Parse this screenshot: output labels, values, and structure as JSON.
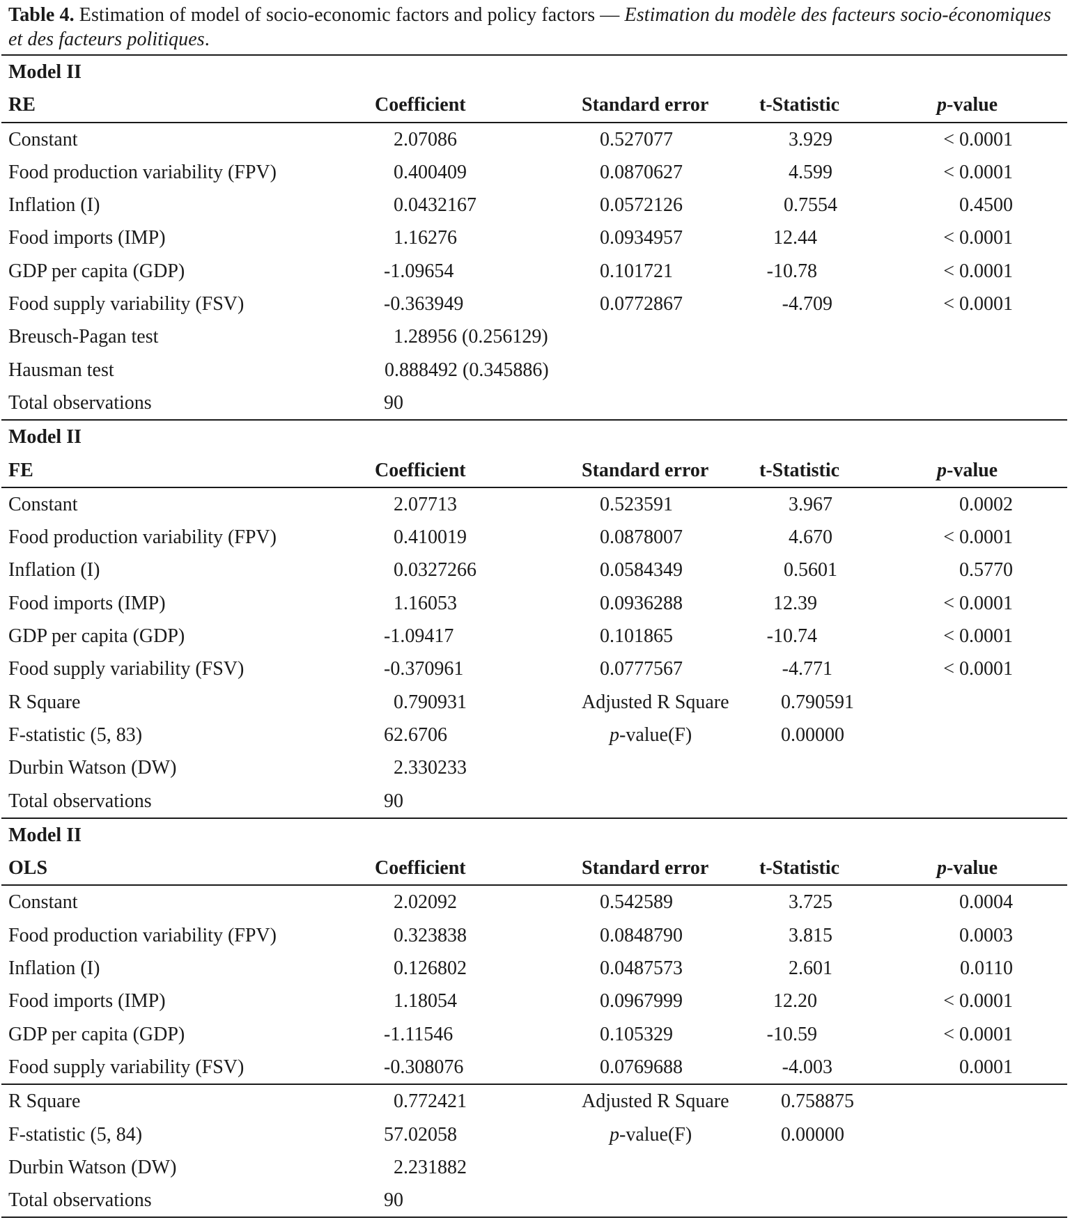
{
  "caption": {
    "label": "Table 4.",
    "english": "Estimation of model of socio-economic factors and policy factors —",
    "french": "Estimation du modèle des facteurs socio-économiques et des facteurs politiques",
    "end": "."
  },
  "header": {
    "coefficient": "Coefficient",
    "std_error": "Standard error",
    "t_stat": "t-Statistic",
    "p_italic": "p",
    "p_rest": "-value"
  },
  "sections": [
    {
      "model": "Model II",
      "name": "RE",
      "rows": [
        [
          "Constant",
          "2.07086",
          "0.527077",
          "3.929",
          "< 0.0001"
        ],
        [
          "Food production variability (FPV)",
          "0.400409",
          "0.0870627",
          "4.599",
          "< 0.0001"
        ],
        [
          "Inflation (I)",
          "0.0432167",
          "0.0572126",
          "0.7554",
          "0.4500"
        ],
        [
          "Food imports (IMP)",
          "1.16276",
          "0.0934957",
          "12.44",
          "< 0.0001"
        ],
        [
          "GDP per capita (GDP)",
          "-1.09654",
          "0.101721",
          "-10.78",
          "< 0.0001"
        ],
        [
          "Food supply variability (FSV)",
          "-0.363949",
          "0.0772867",
          "-4.709",
          "< 0.0001"
        ]
      ],
      "stats": [
        {
          "label": "Breusch-Pagan test",
          "value": "1.28956 (0.256129)"
        },
        {
          "label": "Hausman test",
          "value": "0.888492 (0.345886)"
        },
        {
          "label": "Total observations",
          "value": "90"
        }
      ]
    },
    {
      "model": "Model II",
      "name": "FE",
      "rows": [
        [
          "Constant",
          "2.07713",
          "0.523591",
          "3.967",
          "0.0002"
        ],
        [
          "Food production variability (FPV)",
          "0.410019",
          "0.0878007",
          "4.670",
          "< 0.0001"
        ],
        [
          "Inflation (I)",
          "0.0327266",
          "0.0584349",
          "0.5601",
          "0.5770"
        ],
        [
          "Food imports (IMP)",
          "1.16053",
          "0.0936288",
          "12.39",
          "< 0.0001"
        ],
        [
          "GDP per capita (GDP)",
          "-1.09417",
          "0.101865",
          "-10.74",
          "< 0.0001"
        ],
        [
          "Food supply variability (FSV)",
          "-0.370961",
          "0.0777567",
          "-4.771",
          "< 0.0001"
        ]
      ],
      "fit": {
        "r2_label": "R Square",
        "r2": "0.790931",
        "adj_label": "Adjusted R Square",
        "adj": "0.790591",
        "f_label": "F-statistic (5, 83)",
        "f": "62.6706",
        "pf_italic": "p",
        "pf_rest": "-value(F)",
        "pf": "0.00000",
        "dw_label": "Durbin Watson (DW)",
        "dw": "2.330233",
        "obs_label": "Total observations",
        "obs": "90"
      }
    },
    {
      "model": "Model II",
      "name": "OLS",
      "rows": [
        [
          "Constant",
          "2.02092",
          "0.542589",
          "3.725",
          "0.0004"
        ],
        [
          "Food production variability (FPV)",
          "0.323838",
          "0.0848790",
          "3.815",
          "0.0003"
        ],
        [
          "Inflation (I)",
          "0.126802",
          "0.0487573",
          "2.601",
          "0.0110"
        ],
        [
          "Food imports (IMP)",
          "1.18054",
          "0.0967999",
          "12.20",
          "< 0.0001"
        ],
        [
          "GDP per capita (GDP)",
          "-1.11546",
          "0.105329",
          "-10.59",
          "< 0.0001"
        ],
        [
          "Food supply variability (FSV)",
          "-0.308076",
          "0.0769688",
          "-4.003",
          "0.0001"
        ]
      ],
      "fit": {
        "r2_label": "R Square",
        "r2": "0.772421",
        "adj_label": "Adjusted R Square",
        "adj": "0.758875",
        "f_label": "F-statistic (5, 84)",
        "f": "57.02058",
        "pf_italic": "p",
        "pf_rest": "-value(F)",
        "pf": "0.00000",
        "dw_label": "Durbin Watson (DW)",
        "dw": "2.231882",
        "obs_label": "Total observations",
        "obs": "90"
      }
    }
  ]
}
